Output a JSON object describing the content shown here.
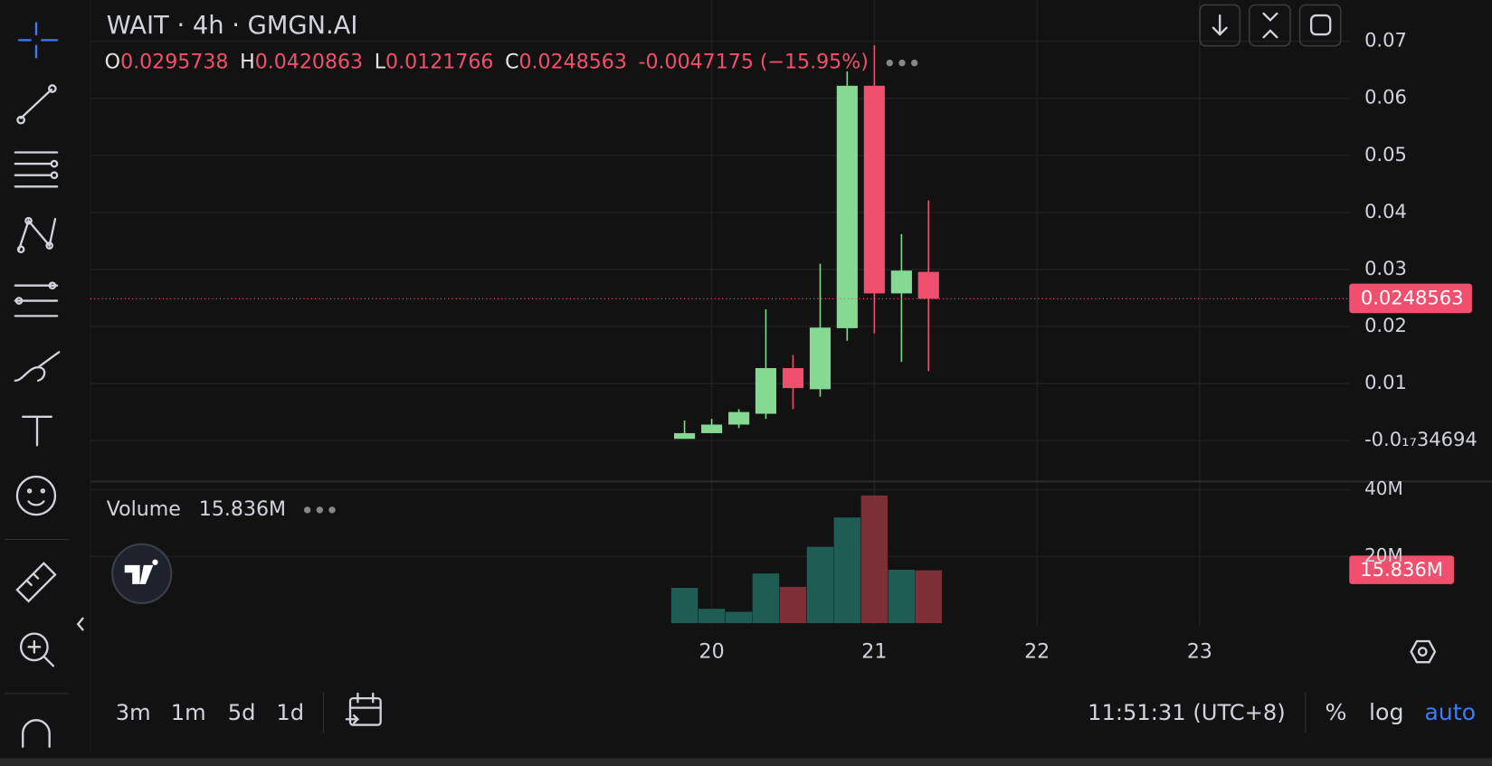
{
  "chart_data": {
    "type": "candlestick",
    "title": "WAIT · 4h · GMGN.AI",
    "x": [
      19.833,
      20,
      20.167,
      20.333,
      20.5,
      20.667,
      20.833,
      21,
      21.167,
      21.333
    ],
    "open": [
      0.0003,
      0.0013,
      0.0028,
      0.0047,
      0.0127,
      0.009,
      0.0197,
      0.0622,
      0.0258,
      0.0295738
    ],
    "high": [
      0.0035,
      0.0038,
      0.0055,
      0.023,
      0.015,
      0.031,
      0.0647,
      0.0693,
      0.0362,
      0.0420863
    ],
    "low": [
      0.0003,
      0.0013,
      0.0022,
      0.0038,
      0.0055,
      0.0077,
      0.0175,
      0.0188,
      0.0138,
      0.0121766
    ],
    "close": [
      0.0013,
      0.0028,
      0.005,
      0.0127,
      0.0092,
      0.0198,
      0.0622,
      0.0258,
      0.0298,
      0.0248563
    ],
    "up_color": "#86d993",
    "down_color": "#f0506e",
    "xlim": [
      16.18,
      23.92
    ],
    "xticks": [
      20,
      21,
      22,
      23
    ],
    "ylim": [
      -0.007,
      0.0772
    ],
    "yticks": [
      {
        "value": -3.4694e-18,
        "label": "-0.0₁₇34694"
      },
      0.01,
      0.02,
      0.03,
      0.04,
      0.05,
      0.06,
      0.07
    ],
    "grid": true,
    "volume": {
      "name": "Volume",
      "values": [
        10600000,
        4300000,
        3400000,
        14900000,
        10900000,
        22900000,
        31700000,
        38300000,
        16000000,
        15836000
      ],
      "value_labels": [
        null,
        null,
        null,
        null,
        null,
        null,
        null,
        null,
        null,
        "15.836M"
      ],
      "up_color": "#1f5c54",
      "down_color": "#7c2f37",
      "ylim": [
        0,
        42500000
      ],
      "yticks": [
        {
          "value": 20000000,
          "label": "20M"
        },
        {
          "value": 40000000,
          "label": "40M"
        }
      ]
    }
  },
  "ui": {
    "ohlc_letters": [
      "O",
      "H",
      "L",
      "C"
    ],
    "change": "-0.0047175 (−15.95%)",
    "ranges": [
      "3m",
      "1m",
      "5d",
      "1d"
    ],
    "clock": "11:51:31 (UTC+8)",
    "scale_buttons": [
      "%",
      "log",
      "auto"
    ]
  }
}
